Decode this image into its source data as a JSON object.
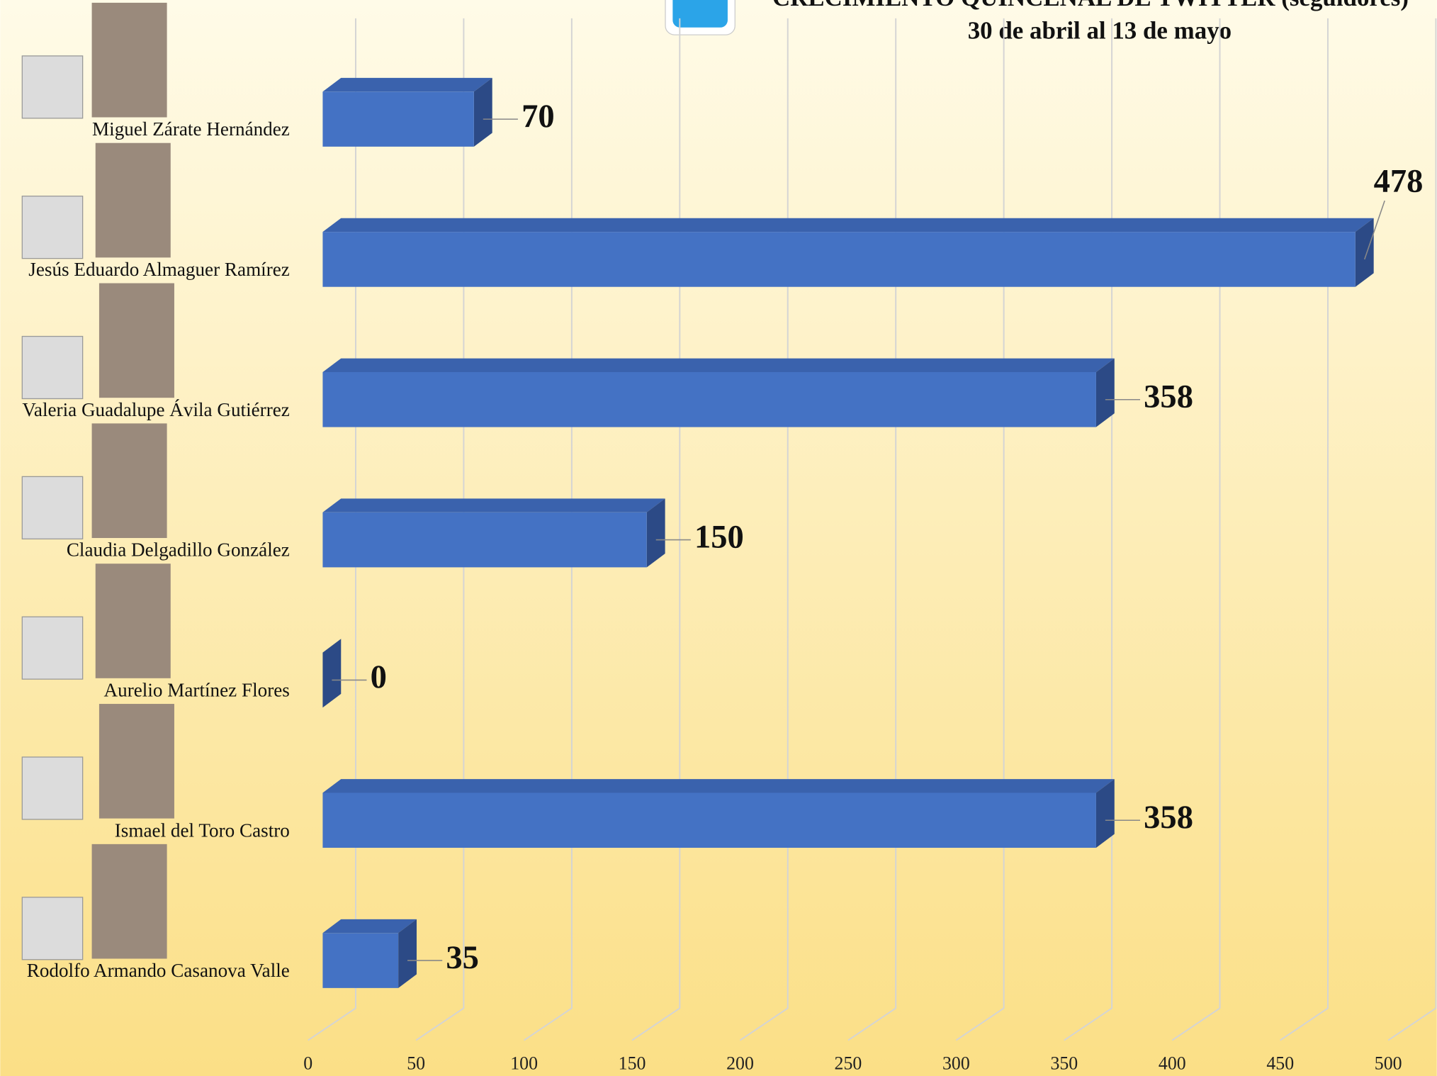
{
  "chart_data": {
    "type": "bar",
    "orientation": "horizontal",
    "title": "CRECIMIENTO QUINCENAL DE TWITTER (seguidores)",
    "subtitle": "30 de abril al 13 de mayo",
    "categories": [
      "Miguel Zárate Hernández",
      "Jesús Eduardo Almaguer Ramírez",
      "Valeria Guadalupe Ávila Gutiérrez",
      "Claudia Delgadillo González",
      "Aurelio Martínez Flores",
      "Ismael del Toro Castro",
      "Rodolfo Armando Casanova Valle"
    ],
    "values": [
      70,
      478,
      358,
      150,
      0,
      358,
      35
    ],
    "color": "#4472c4",
    "xlim": [
      0,
      500
    ],
    "xticks": [
      0,
      50,
      100,
      150,
      200,
      250,
      300,
      350,
      400,
      450,
      500
    ],
    "grid": true
  }
}
